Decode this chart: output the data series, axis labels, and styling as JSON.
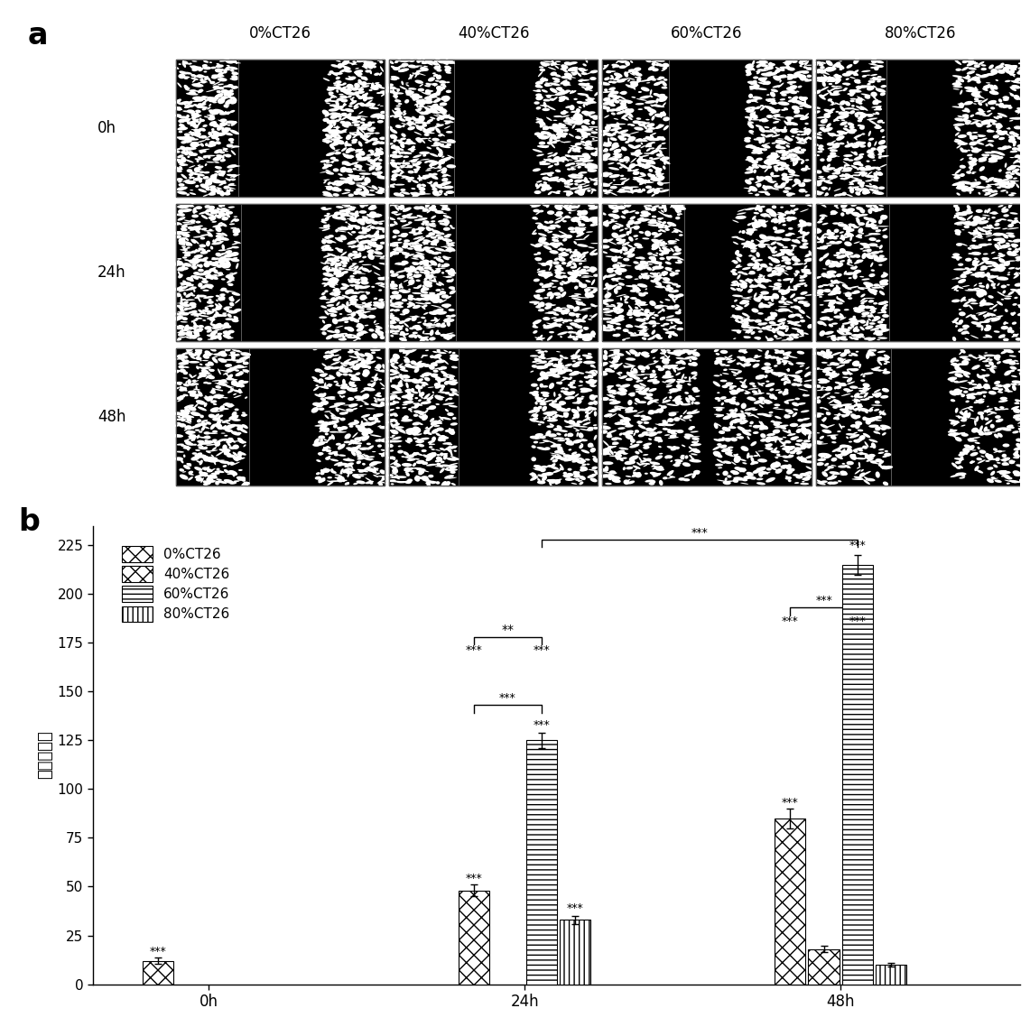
{
  "panel_a_label": "a",
  "panel_b_label": "b",
  "col_labels": [
    "0%CT26",
    "40%CT26",
    "60%CT26",
    "80%CT26"
  ],
  "row_labels": [
    "0h",
    "24h",
    "48h"
  ],
  "bar_groups": [
    "0h",
    "24h",
    "48h"
  ],
  "series_labels": [
    "0%CT26",
    "40%CT26",
    "60%CT26",
    "80%CT26"
  ],
  "bar_values": {
    "0h": [
      12,
      0,
      0,
      0
    ],
    "24h": [
      48,
      0,
      125,
      33
    ],
    "48h": [
      85,
      18,
      215,
      10
    ]
  },
  "bar_errors": {
    "0h": [
      1.5,
      0,
      0,
      0
    ],
    "24h": [
      3,
      0,
      4,
      2
    ],
    "48h": [
      5,
      1.5,
      5,
      1
    ]
  },
  "ylabel": "迁移细胞数",
  "yticks": [
    0,
    25,
    50,
    75,
    100,
    125,
    150,
    175,
    200,
    225
  ],
  "ylim": [
    0,
    235
  ],
  "group_centers": [
    0,
    1.5,
    3.0
  ],
  "xlim": [
    -0.55,
    3.85
  ],
  "font_size_labels": 12,
  "font_size_ticks": 11,
  "font_size_panel": 20,
  "bar_width": 0.16,
  "group_width": 0.7
}
